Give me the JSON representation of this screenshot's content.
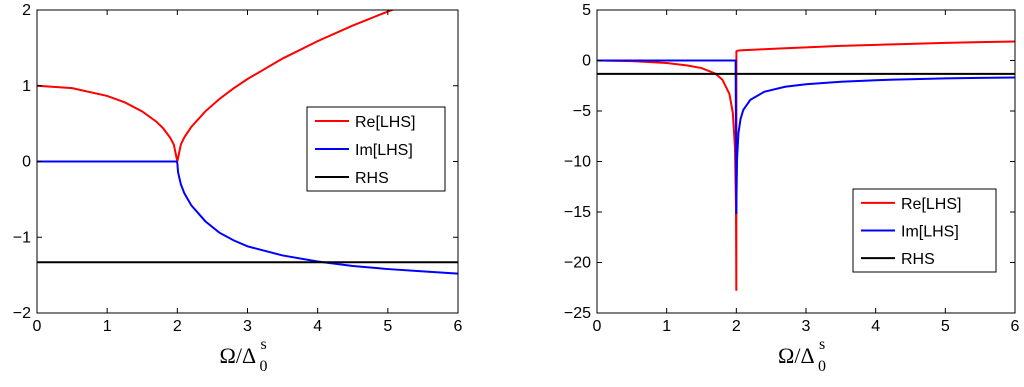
{
  "chart_data": [
    {
      "type": "line",
      "title": "",
      "xlabel": "Ω/Δ",
      "xlabel_sub": "0",
      "xlabel_sup": "s",
      "ylabel": "",
      "xlim": [
        0,
        6
      ],
      "ylim": [
        -2,
        2
      ],
      "xticks": [
        0,
        1,
        2,
        3,
        4,
        5,
        6
      ],
      "yticks": [
        -2,
        -1,
        0,
        1,
        2
      ],
      "xtick_labels": [
        "0",
        "1",
        "2",
        "3",
        "4",
        "5",
        "6"
      ],
      "ytick_labels": [
        "−2",
        "−1",
        "0",
        "1",
        "2"
      ],
      "grid": false,
      "legend": "center-right",
      "series": [
        {
          "name": "Re[LHS]",
          "color": "#ff0000",
          "x": [
            0,
            0.5,
            1,
            1.25,
            1.5,
            1.7,
            1.8,
            1.9,
            1.95,
            2.0,
            2.05,
            2.1,
            2.2,
            2.4,
            2.6,
            2.8,
            3,
            3.5,
            4,
            4.5,
            5,
            5.5,
            6
          ],
          "y": [
            1.0,
            0.968,
            0.866,
            0.781,
            0.661,
            0.527,
            0.436,
            0.312,
            0.222,
            0.0,
            0.224,
            0.32,
            0.458,
            0.663,
            0.825,
            0.964,
            1.089,
            1.359,
            1.589,
            1.795,
            1.98,
            2.15,
            2.31
          ]
        },
        {
          "name": "Im[LHS]",
          "color": "#0000ff",
          "x": [
            0,
            0.5,
            1,
            1.5,
            1.99,
            2.0,
            2.01,
            2.05,
            2.1,
            2.2,
            2.4,
            2.6,
            2.8,
            3,
            3.5,
            4,
            4.5,
            5,
            5.5,
            6
          ],
          "y": [
            0,
            0,
            0,
            0,
            0,
            -0.02,
            -0.14,
            -0.3,
            -0.42,
            -0.58,
            -0.79,
            -0.94,
            -1.04,
            -1.12,
            -1.24,
            -1.32,
            -1.38,
            -1.42,
            -1.45,
            -1.48
          ]
        },
        {
          "name": "RHS",
          "color": "#000000",
          "x": [
            0,
            6
          ],
          "y": [
            -1.33,
            -1.33
          ]
        }
      ]
    },
    {
      "type": "line",
      "title": "",
      "xlabel": "Ω/Δ",
      "xlabel_sub": "0",
      "xlabel_sup": "s",
      "ylabel": "",
      "xlim": [
        0,
        6
      ],
      "ylim": [
        -25,
        5
      ],
      "xticks": [
        0,
        1,
        2,
        3,
        4,
        5,
        6
      ],
      "yticks": [
        -25,
        -20,
        -15,
        -10,
        -5,
        0,
        5
      ],
      "xtick_labels": [
        "0",
        "1",
        "2",
        "3",
        "4",
        "5",
        "6"
      ],
      "ytick_labels": [
        "−25",
        "−20",
        "−15",
        "−10",
        "−5",
        "0",
        "5"
      ],
      "grid": false,
      "legend": "bottom-right",
      "series": [
        {
          "name": "Re[LHS]",
          "color": "#ff0000",
          "x": [
            0,
            0.5,
            1,
            1.3,
            1.5,
            1.7,
            1.8,
            1.9,
            1.95,
            1.98,
            1.995,
            2.0,
            2.001,
            2.01,
            2.05,
            2.2,
            2.5,
            3,
            3.5,
            4,
            4.5,
            5,
            5.5,
            6
          ],
          "y": [
            0,
            -0.06,
            -0.25,
            -0.5,
            -0.75,
            -1.3,
            -1.9,
            -3.3,
            -5.2,
            -8.6,
            -14.5,
            -22.8,
            0.9,
            0.95,
            1.0,
            1.05,
            1.15,
            1.3,
            1.45,
            1.55,
            1.65,
            1.75,
            1.82,
            1.88
          ]
        },
        {
          "name": "Im[LHS]",
          "color": "#0000ff",
          "x": [
            0,
            1,
            1.99,
            2.0,
            2.002,
            2.01,
            2.03,
            2.06,
            2.1,
            2.2,
            2.4,
            2.7,
            3,
            3.5,
            4,
            4.5,
            5,
            5.5,
            6
          ],
          "y": [
            0,
            0,
            0,
            -15.2,
            -13.5,
            -9.8,
            -7.2,
            -5.8,
            -4.9,
            -3.9,
            -3.1,
            -2.6,
            -2.35,
            -2.1,
            -1.95,
            -1.85,
            -1.77,
            -1.72,
            -1.68
          ]
        },
        {
          "name": "RHS",
          "color": "#000000",
          "x": [
            0,
            6
          ],
          "y": [
            -1.33,
            -1.33
          ]
        }
      ]
    }
  ]
}
